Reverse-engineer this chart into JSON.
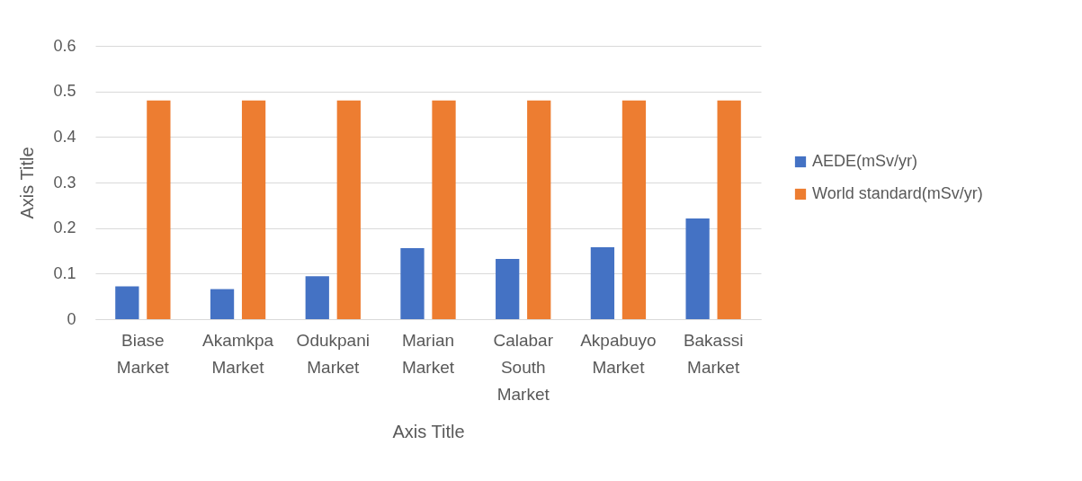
{
  "chart_data": {
    "type": "bar",
    "xlabel": "Axis Title",
    "ylabel": "Axis Title",
    "categories": [
      "Biase Market",
      "Akamkpa Market",
      "Odukpani Market",
      "Marian Market",
      "Calabar South Market",
      "Akpabuyo Market",
      "Bakassi Market"
    ],
    "series": [
      {
        "name": "AEDE(mSv/yr)",
        "color": "#4472c4",
        "values": [
          0.072,
          0.066,
          0.094,
          0.156,
          0.132,
          0.158,
          0.221
        ]
      },
      {
        "name": "World standard(mSv/yr)",
        "color": "#ed7d31",
        "values": [
          0.48,
          0.48,
          0.48,
          0.48,
          0.48,
          0.48,
          0.48
        ]
      }
    ],
    "ylim": [
      0,
      0.6
    ],
    "yticks": [
      0,
      0.1,
      0.2,
      0.3,
      0.4,
      0.5,
      0.6
    ],
    "grid": "y",
    "legend": "right"
  }
}
